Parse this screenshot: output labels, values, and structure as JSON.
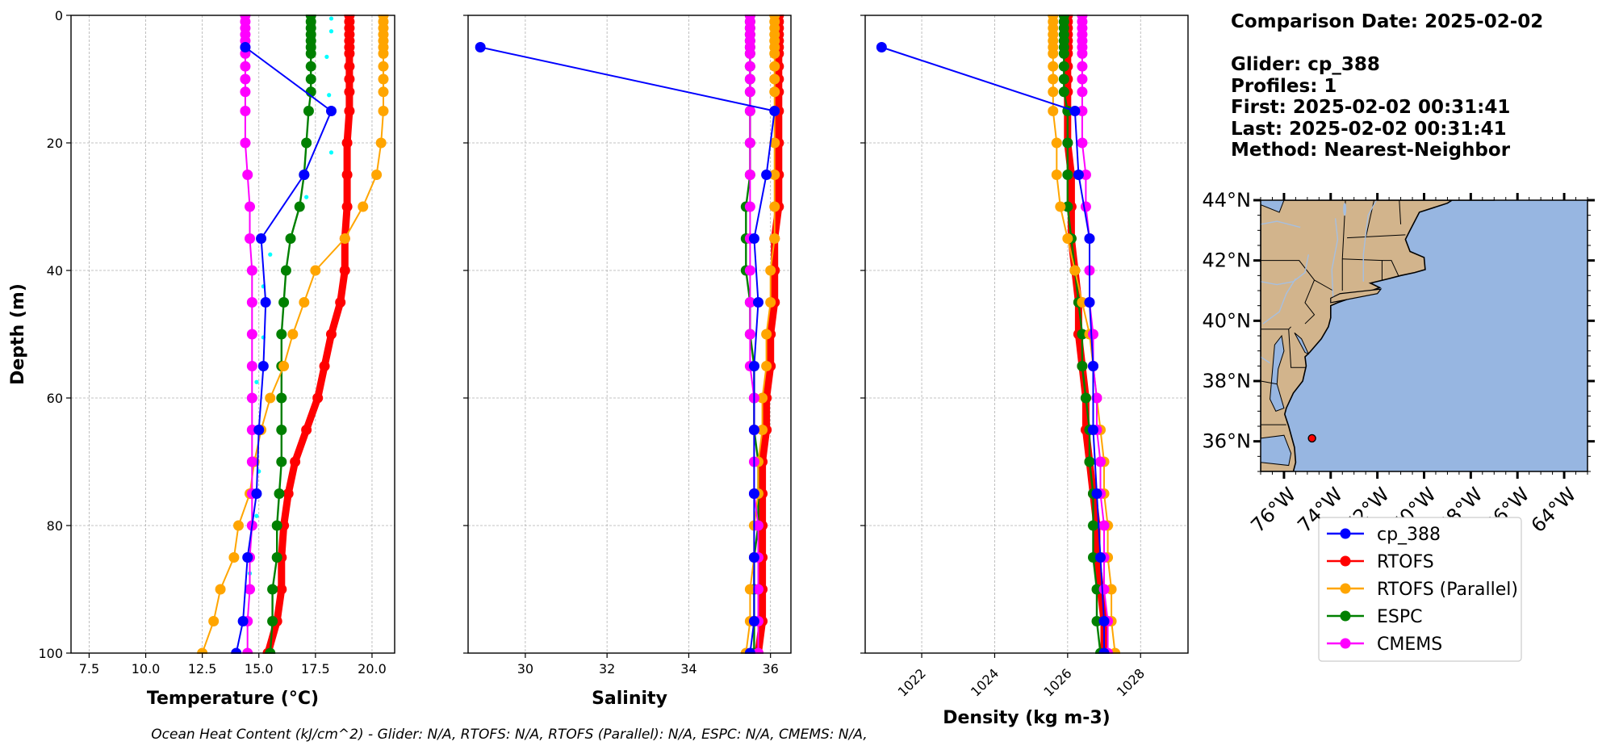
{
  "info": {
    "comparison_date": "Comparison Date: 2025-02-02",
    "glider": "Glider: cp_388",
    "profiles": "Profiles: 1",
    "first": "First: 2025-02-02 00:31:41",
    "last": "Last: 2025-02-02 00:31:41",
    "method": "Method: Nearest-Neighbor"
  },
  "footer": "Ocean Heat Content (kJ/cm^2) - Glider: N/A,  RTOFS: N/A,  RTOFS (Parallel): N/A,  ESPC: N/A,  CMEMS: N/A,",
  "colors": {
    "cp_388": "#0000ff",
    "RTOFS": "#ff0000",
    "RTOFS (Parallel)": "#ffa500",
    "ESPC": "#008000",
    "CMEMS": "#ff00ff",
    "glider_raw": "#00ffff",
    "land": "#d2b48c",
    "ocean": "#97b6e1"
  },
  "chart_data": [
    {
      "type": "line",
      "xlabel": "Temperature (°C)",
      "ylabel": "Depth (m)",
      "xlim": [
        6.7,
        21.0
      ],
      "ylim": [
        100,
        0
      ],
      "xticks": [
        "7.5",
        "10.0",
        "12.5",
        "15.0",
        "17.5",
        "20.0"
      ],
      "yticks": [
        "0",
        "20",
        "40",
        "60",
        "80",
        "100"
      ],
      "grid": true,
      "depth": [
        0,
        1,
        2,
        3,
        4,
        5,
        6,
        8,
        10,
        12,
        15,
        20,
        25,
        30,
        35,
        40,
        45,
        50,
        55,
        60,
        65,
        70,
        75,
        80,
        85,
        90,
        95,
        100
      ],
      "glider_raw": [
        [
          18.2,
          0.5
        ],
        [
          18.2,
          2.5
        ],
        [
          18.0,
          6.5
        ],
        [
          18.1,
          12.5
        ],
        [
          18.2,
          21.5
        ],
        [
          17.1,
          28.5
        ],
        [
          15.5,
          37.5
        ],
        [
          15.2,
          42.5
        ],
        [
          15.2,
          50.5
        ],
        [
          14.9,
          57.5
        ],
        [
          15.0,
          64.5
        ],
        [
          15.0,
          71.5
        ],
        [
          14.9,
          78.5
        ],
        [
          14.6,
          87.5
        ],
        [
          14.3,
          94.5
        ]
      ],
      "series": [
        {
          "name": "cp_388",
          "points": [
            [
              14.4,
              5
            ],
            [
              18.2,
              15
            ],
            [
              17.0,
              25
            ],
            [
              15.1,
              35
            ],
            [
              15.3,
              45
            ],
            [
              15.2,
              55
            ],
            [
              15.0,
              65
            ],
            [
              14.9,
              75
            ],
            [
              14.5,
              85
            ],
            [
              14.3,
              95
            ],
            [
              14.0,
              100
            ]
          ]
        },
        {
          "name": "RTOFS",
          "values": [
            19.0,
            19.0,
            19.0,
            19.0,
            19.0,
            19.0,
            19.0,
            19.0,
            19.0,
            19.0,
            19.0,
            18.9,
            18.9,
            18.9,
            18.8,
            18.8,
            18.6,
            18.2,
            17.9,
            17.6,
            17.1,
            16.6,
            16.3,
            16.1,
            16.0,
            16.0,
            15.8,
            15.4
          ]
        },
        {
          "name": "RTOFS (Parallel)",
          "values": [
            20.5,
            20.5,
            20.5,
            20.5,
            20.5,
            20.5,
            20.5,
            20.5,
            20.5,
            20.5,
            20.5,
            20.4,
            20.2,
            19.6,
            18.8,
            17.5,
            17.0,
            16.5,
            16.1,
            15.5,
            15.1,
            14.8,
            14.6,
            14.1,
            13.9,
            13.3,
            13.0,
            12.5
          ]
        },
        {
          "name": "ESPC",
          "values": [
            17.3,
            17.3,
            17.3,
            17.3,
            17.3,
            17.3,
            17.3,
            17.3,
            17.3,
            17.3,
            17.2,
            17.1,
            17.0,
            16.8,
            16.4,
            16.2,
            16.1,
            16.0,
            16.0,
            16.0,
            16.0,
            16.0,
            15.9,
            15.8,
            15.8,
            15.6,
            15.6,
            15.5
          ]
        },
        {
          "name": "CMEMS",
          "values": [
            14.4,
            14.4,
            14.4,
            14.4,
            14.4,
            14.4,
            14.4,
            14.4,
            14.4,
            14.4,
            14.4,
            14.4,
            14.5,
            14.6,
            14.6,
            14.7,
            14.7,
            14.7,
            14.7,
            14.7,
            14.7,
            14.7,
            14.7,
            14.7,
            14.6,
            14.6,
            14.5,
            14.5
          ]
        }
      ]
    },
    {
      "type": "line",
      "xlabel": "Salinity",
      "xlim": [
        28.6,
        36.5
      ],
      "ylim": [
        100,
        0
      ],
      "xticks": [
        "30",
        "32",
        "34",
        "36"
      ],
      "grid": true,
      "depth": [
        0,
        1,
        2,
        3,
        4,
        5,
        6,
        8,
        10,
        12,
        15,
        20,
        25,
        30,
        35,
        40,
        45,
        50,
        55,
        60,
        65,
        70,
        75,
        80,
        85,
        90,
        95,
        100
      ],
      "series": [
        {
          "name": "cp_388",
          "points": [
            [
              28.9,
              5
            ],
            [
              36.1,
              15
            ],
            [
              35.9,
              25
            ],
            [
              35.6,
              35
            ],
            [
              35.7,
              45
            ],
            [
              35.6,
              55
            ],
            [
              35.6,
              65
            ],
            [
              35.6,
              75
            ],
            [
              35.6,
              85
            ],
            [
              35.6,
              95
            ],
            [
              35.5,
              100
            ]
          ]
        },
        {
          "name": "RTOFS",
          "values": [
            36.2,
            36.2,
            36.2,
            36.2,
            36.2,
            36.2,
            36.2,
            36.2,
            36.2,
            36.2,
            36.2,
            36.2,
            36.2,
            36.2,
            36.1,
            36.1,
            36.1,
            36.0,
            36.0,
            35.9,
            35.9,
            35.8,
            35.8,
            35.8,
            35.8,
            35.8,
            35.8,
            35.7
          ]
        },
        {
          "name": "RTOFS (Parallel)",
          "values": [
            36.1,
            36.1,
            36.1,
            36.1,
            36.1,
            36.1,
            36.1,
            36.1,
            36.1,
            36.1,
            36.1,
            36.1,
            36.1,
            36.1,
            36.1,
            36.0,
            36.0,
            35.9,
            35.9,
            35.8,
            35.8,
            35.7,
            35.7,
            35.6,
            35.6,
            35.5,
            35.5,
            35.4
          ]
        },
        {
          "name": "ESPC",
          "values": [
            35.5,
            35.5,
            35.5,
            35.5,
            35.5,
            35.5,
            35.5,
            35.5,
            35.5,
            35.5,
            35.5,
            35.5,
            35.5,
            35.4,
            35.4,
            35.4,
            35.5,
            35.5,
            35.6,
            35.6,
            35.6,
            35.7,
            35.7,
            35.7,
            35.6,
            35.6,
            35.6,
            35.6
          ]
        },
        {
          "name": "CMEMS",
          "values": [
            35.5,
            35.5,
            35.5,
            35.5,
            35.5,
            35.5,
            35.5,
            35.5,
            35.5,
            35.5,
            35.5,
            35.5,
            35.5,
            35.5,
            35.5,
            35.5,
            35.5,
            35.5,
            35.5,
            35.6,
            35.6,
            35.6,
            35.6,
            35.7,
            35.7,
            35.7,
            35.7,
            35.7
          ]
        }
      ]
    },
    {
      "type": "line",
      "xlabel": "Density (kg m-3)",
      "xlim": [
        1020.45,
        1029.3
      ],
      "ylim": [
        100,
        0
      ],
      "xticks": [
        "1022",
        "1024",
        "1026",
        "1028"
      ],
      "grid": true,
      "depth": [
        0,
        1,
        2,
        3,
        4,
        5,
        6,
        8,
        10,
        12,
        15,
        20,
        25,
        30,
        35,
        40,
        45,
        50,
        55,
        60,
        65,
        70,
        75,
        80,
        85,
        90,
        95,
        100
      ],
      "series": [
        {
          "name": "cp_388",
          "points": [
            [
              1020.9,
              5
            ],
            [
              1026.2,
              15
            ],
            [
              1026.3,
              25
            ],
            [
              1026.6,
              35
            ],
            [
              1026.6,
              45
            ],
            [
              1026.7,
              55
            ],
            [
              1026.7,
              65
            ],
            [
              1026.8,
              75
            ],
            [
              1026.9,
              85
            ],
            [
              1027.0,
              95
            ],
            [
              1027.0,
              100
            ]
          ]
        },
        {
          "name": "RTOFS",
          "values": [
            1026.0,
            1026.0,
            1026.0,
            1026.0,
            1026.0,
            1026.0,
            1026.0,
            1026.0,
            1026.0,
            1026.0,
            1026.0,
            1026.0,
            1026.1,
            1026.1,
            1026.1,
            1026.2,
            1026.3,
            1026.3,
            1026.4,
            1026.5,
            1026.5,
            1026.6,
            1026.7,
            1026.8,
            1026.8,
            1026.9,
            1027.0,
            1027.0
          ]
        },
        {
          "name": "RTOFS (Parallel)",
          "values": [
            1025.6,
            1025.6,
            1025.6,
            1025.6,
            1025.6,
            1025.6,
            1025.6,
            1025.6,
            1025.6,
            1025.6,
            1025.6,
            1025.7,
            1025.7,
            1025.8,
            1026.0,
            1026.2,
            1026.4,
            1026.6,
            1026.7,
            1026.8,
            1026.9,
            1027.0,
            1027.0,
            1027.1,
            1027.1,
            1027.2,
            1027.2,
            1027.3
          ]
        },
        {
          "name": "ESPC",
          "values": [
            1025.9,
            1025.9,
            1025.9,
            1025.9,
            1025.9,
            1025.9,
            1025.9,
            1025.9,
            1025.9,
            1025.9,
            1026.0,
            1026.0,
            1026.0,
            1026.0,
            1026.1,
            1026.2,
            1026.3,
            1026.4,
            1026.4,
            1026.5,
            1026.6,
            1026.6,
            1026.7,
            1026.7,
            1026.7,
            1026.8,
            1026.8,
            1026.9
          ]
        },
        {
          "name": "CMEMS",
          "values": [
            1026.4,
            1026.4,
            1026.4,
            1026.4,
            1026.4,
            1026.4,
            1026.4,
            1026.4,
            1026.4,
            1026.4,
            1026.4,
            1026.4,
            1026.5,
            1026.5,
            1026.6,
            1026.6,
            1026.6,
            1026.7,
            1026.7,
            1026.8,
            1026.8,
            1026.9,
            1026.9,
            1027.0,
            1027.0,
            1027.0,
            1027.1,
            1027.1
          ]
        }
      ]
    }
  ],
  "map": {
    "lon_range": [
      -77.0,
      -63.0
    ],
    "lat_range": [
      35.0,
      44.0
    ],
    "xticks": [
      "76°W",
      "74°W",
      "72°W",
      "70°W",
      "68°W",
      "66°W",
      "64°W"
    ],
    "yticks": [
      "36°N",
      "38°N",
      "40°N",
      "42°N",
      "44°N"
    ],
    "marker": {
      "lon": -74.8,
      "lat": 36.1
    }
  },
  "legend": [
    "cp_388",
    "RTOFS",
    "RTOFS (Parallel)",
    "ESPC",
    "CMEMS"
  ]
}
